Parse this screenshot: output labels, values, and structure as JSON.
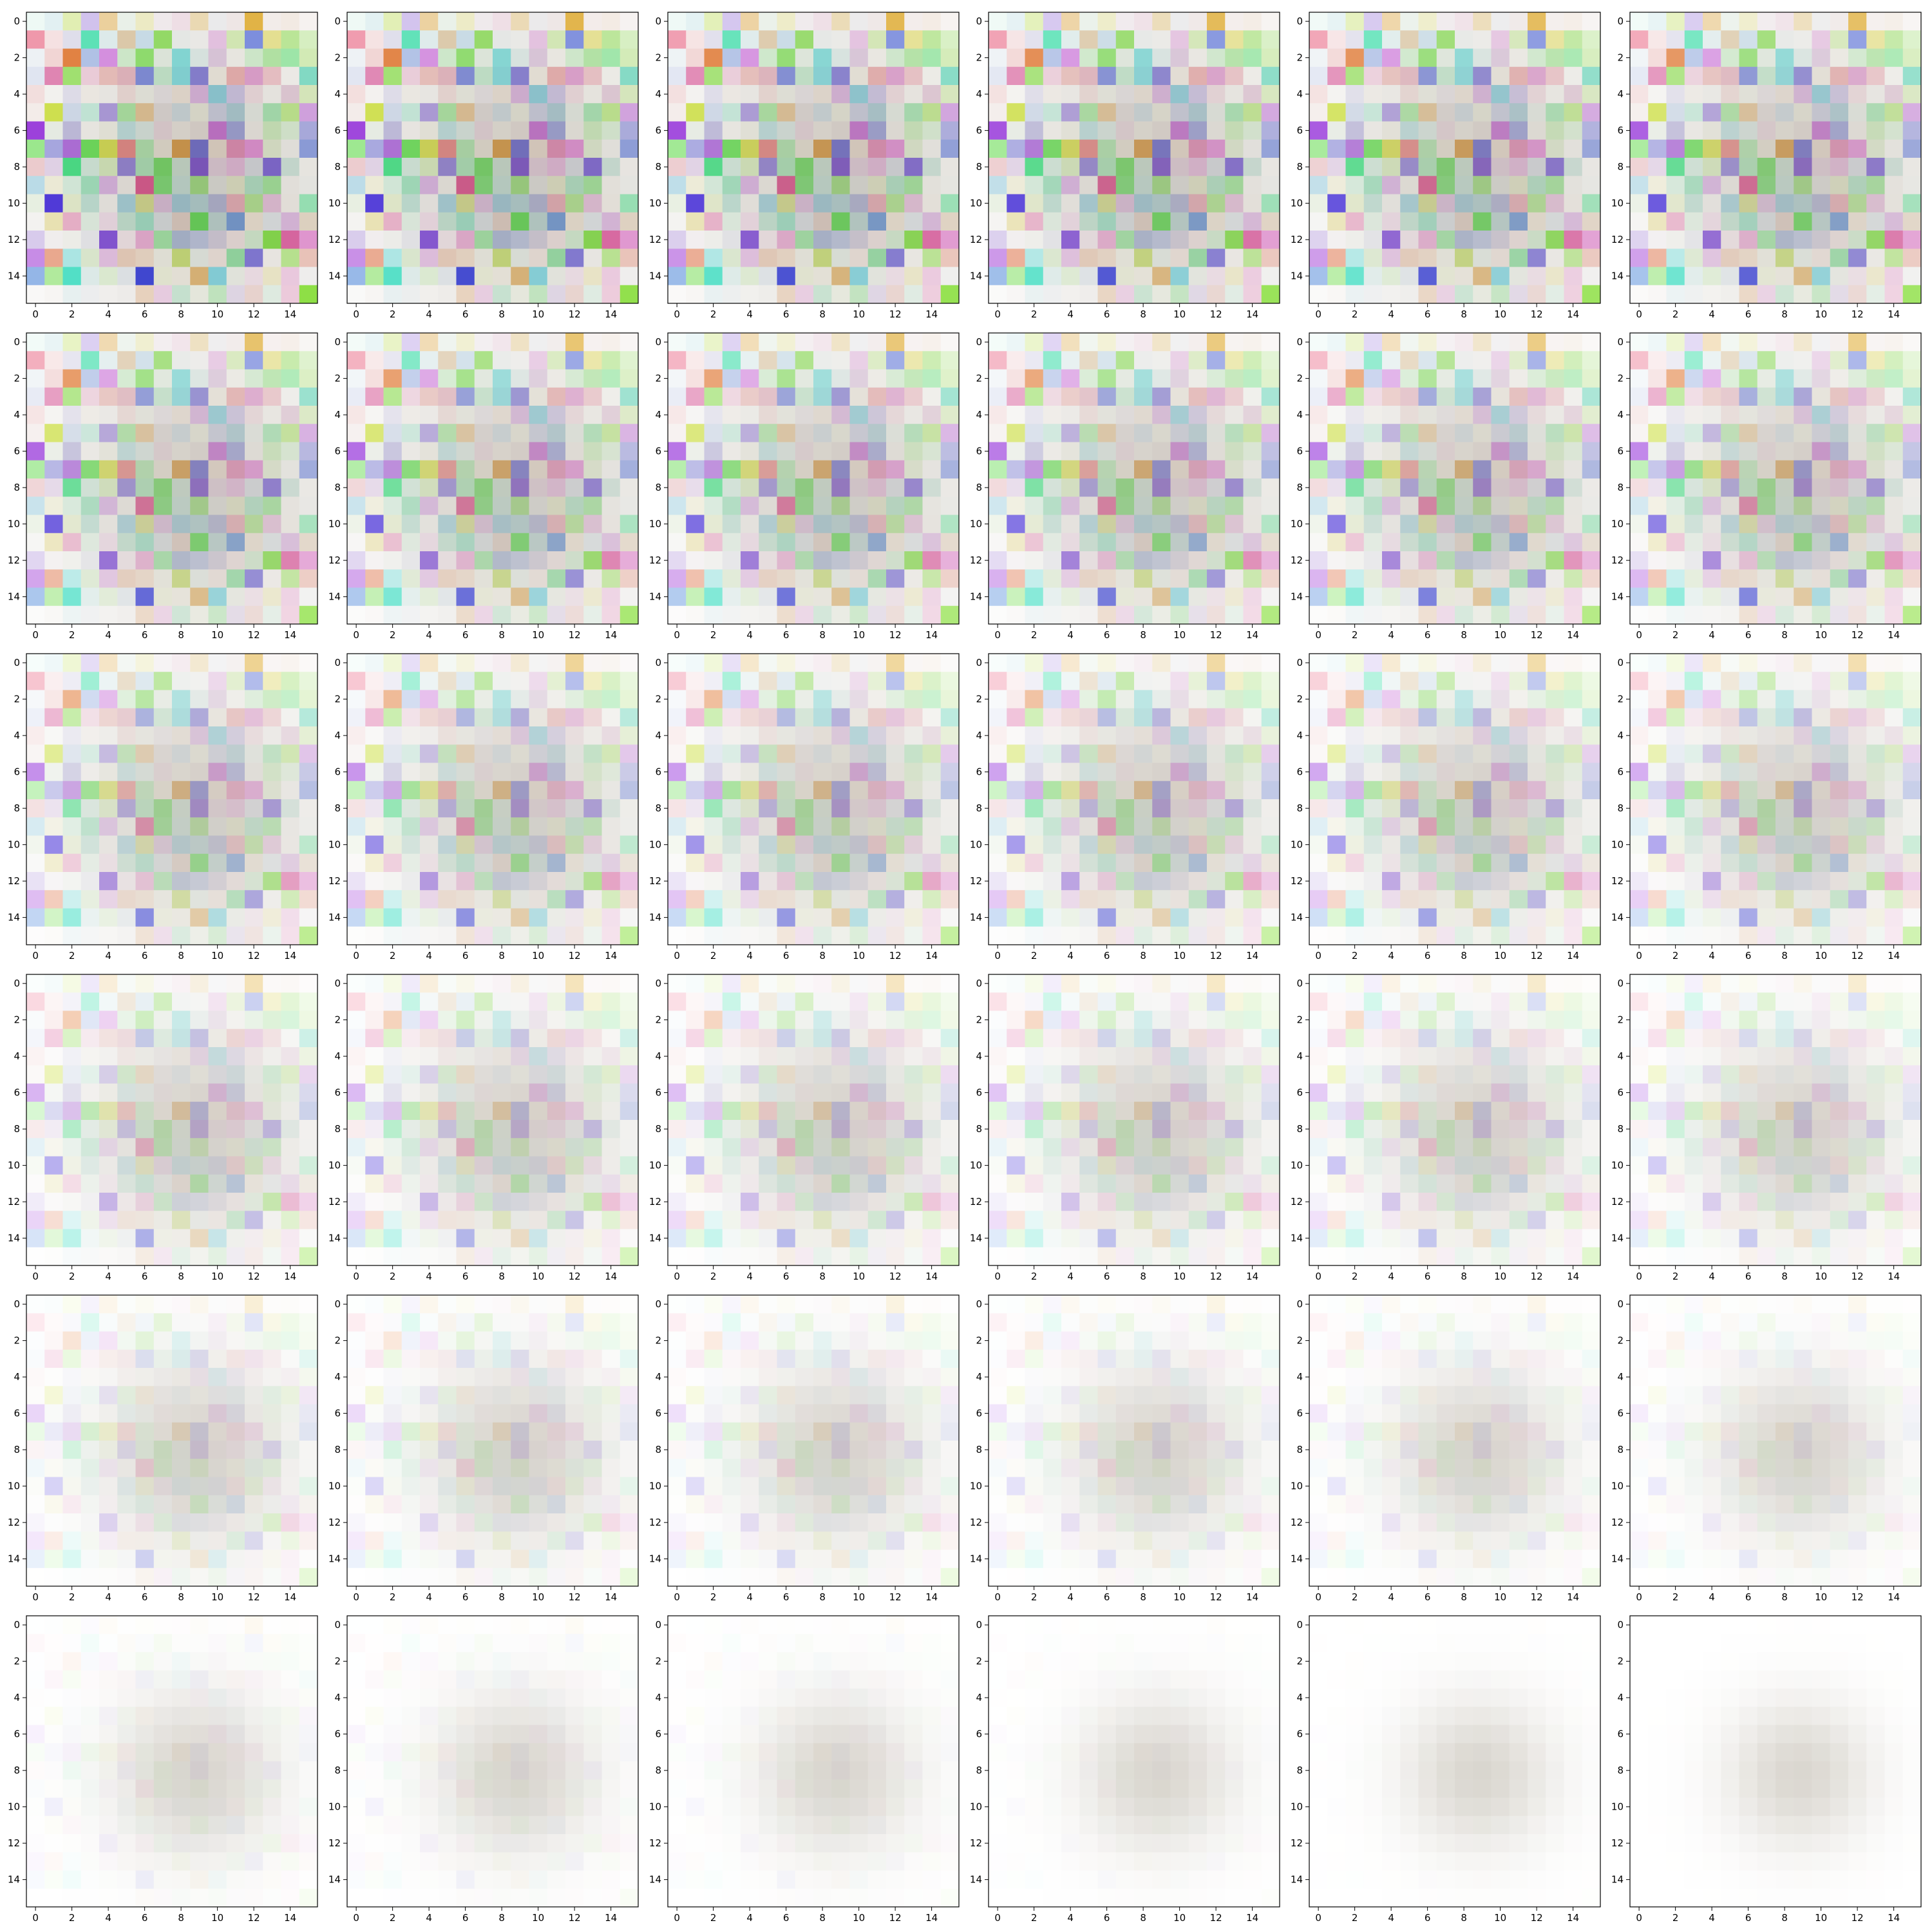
{
  "chart_data": {
    "type": "heatmap",
    "layout": {
      "rows": 6,
      "cols": 6
    },
    "panel_count": 36,
    "grid": {
      "size": 16,
      "xlim": [
        -0.5,
        15.5
      ],
      "ylim": [
        15.5,
        -0.5
      ]
    },
    "x_ticks": [
      0,
      2,
      4,
      6,
      8,
      10,
      12,
      14
    ],
    "y_ticks": [
      0,
      2,
      4,
      6,
      8,
      10,
      12,
      14
    ],
    "x_tick_labels": [
      "0",
      "2",
      "4",
      "6",
      "8",
      "10",
      "12",
      "14"
    ],
    "y_tick_labels": [
      "0",
      "2",
      "4",
      "6",
      "8",
      "10",
      "12",
      "14"
    ],
    "cells": "16x16 RGB image per panel; colors are pseudo-random pastel noise that progressively fades toward white and blurs into a soft gray-brown blob centered near column 9, row 8 across panels 1-36",
    "noise": {
      "seed": 1337,
      "center": [
        8.8,
        8.2
      ],
      "sigma_start": 5.5,
      "sigma_end": 2.8
    },
    "title": "",
    "xlabel": "",
    "ylabel": "",
    "grid_lines": false,
    "legend": "none"
  }
}
